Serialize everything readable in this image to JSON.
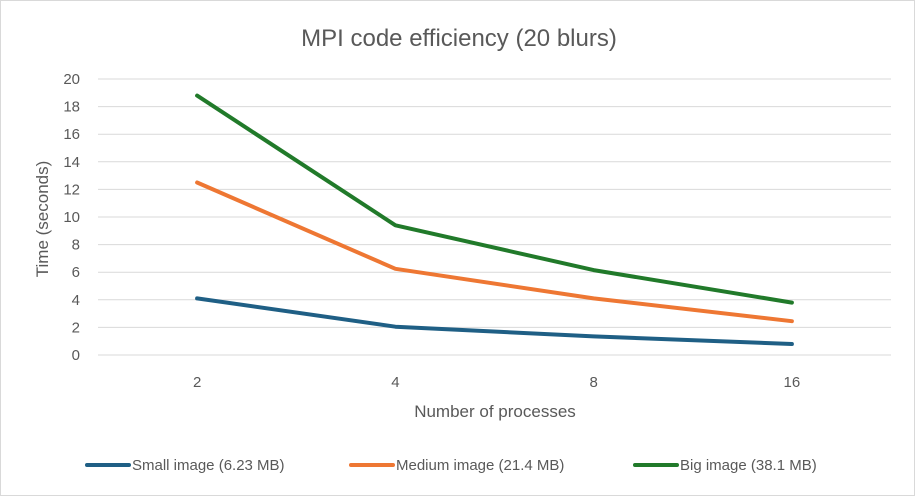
{
  "chart_data": {
    "type": "line",
    "title": "MPI code efficiency (20 blurs)",
    "xlabel": "Number of processes",
    "ylabel": "Time (seconds)",
    "categories": [
      "2",
      "4",
      "8",
      "16"
    ],
    "ylim": [
      0,
      20
    ],
    "yticks": [
      "0",
      "2",
      "4",
      "6",
      "8",
      "10",
      "12",
      "14",
      "16",
      "18",
      "20"
    ],
    "grid": true,
    "legend_position": "bottom",
    "series": [
      {
        "name": "Small image (6.23 MB)",
        "color": "#1f5f85",
        "values": [
          4.1,
          2.05,
          1.35,
          0.8
        ]
      },
      {
        "name": "Medium image (21.4 MB)",
        "color": "#ee7733",
        "values": [
          12.5,
          6.25,
          4.1,
          2.45
        ]
      },
      {
        "name": "Big image (38.1 MB)",
        "color": "#217a2a",
        "values": [
          18.8,
          9.4,
          6.15,
          3.8
        ]
      }
    ]
  }
}
